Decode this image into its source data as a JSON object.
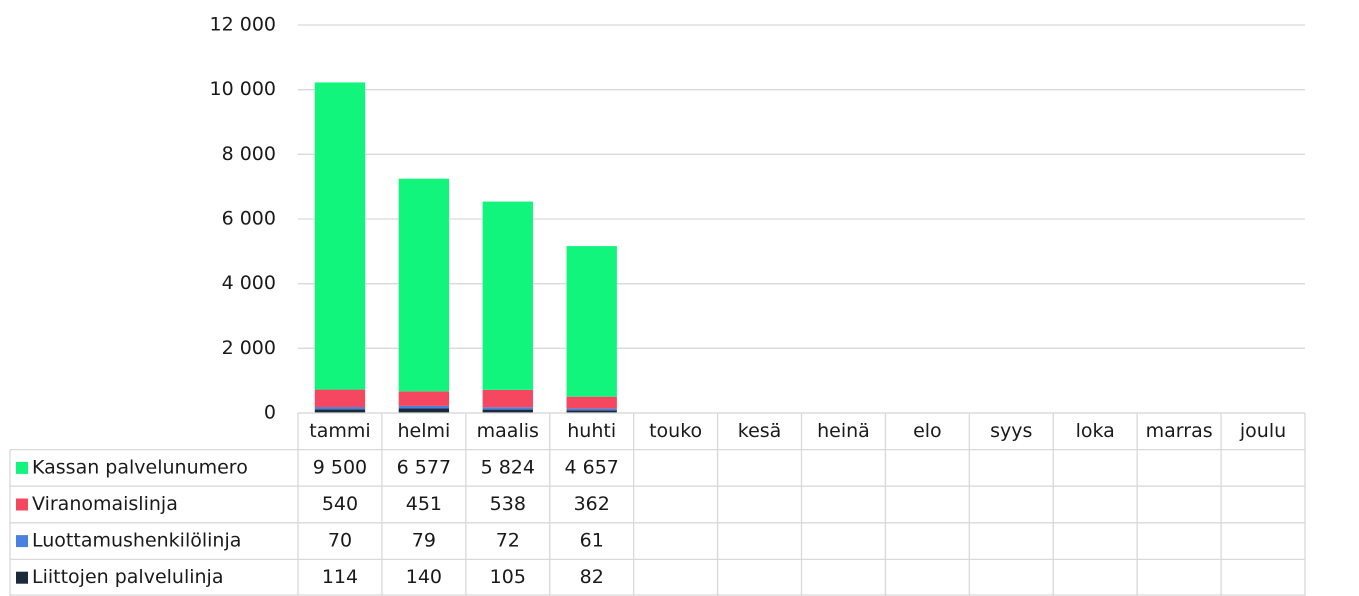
{
  "chart_data": {
    "type": "stacked_bar",
    "categories": [
      "tammi",
      "helmi",
      "maalis",
      "huhti",
      "touko",
      "kesä",
      "heinä",
      "elo",
      "syys",
      "loka",
      "marras",
      "joulu"
    ],
    "series": [
      {
        "name": "Kassan palvelunumero",
        "color": "#12f57d",
        "values": [
          9500,
          6577,
          5824,
          4657,
          null,
          null,
          null,
          null,
          null,
          null,
          null,
          null
        ],
        "value_labels": [
          "9 500",
          "6 577",
          "5 824",
          "4 657",
          null,
          null,
          null,
          null,
          null,
          null,
          null,
          null
        ]
      },
      {
        "name": "Viranomaislinja",
        "color": "#f5475f",
        "values": [
          540,
          451,
          538,
          362,
          null,
          null,
          null,
          null,
          null,
          null,
          null,
          null
        ]
      },
      {
        "name": "Luottamushenkilölinja",
        "color": "#4a80e0",
        "values": [
          70,
          79,
          72,
          61,
          null,
          null,
          null,
          null,
          null,
          null,
          null,
          null
        ]
      },
      {
        "name": "Liittojen palvelulinja",
        "color": "#1b2a38",
        "values": [
          114,
          140,
          105,
          82,
          null,
          null,
          null,
          null,
          null,
          null,
          null,
          null
        ]
      }
    ],
    "ylim": [
      0,
      12000
    ],
    "yticks": [
      0,
      {
        "value": 2000,
        "label": "2 000"
      },
      {
        "value": 4000,
        "label": "4 000"
      },
      {
        "value": 6000,
        "label": "6 000"
      },
      {
        "value": 8000,
        "label": "8 000"
      },
      {
        "value": 10000,
        "label": "10 000"
      },
      {
        "value": 12000,
        "label": "12 000"
      }
    ],
    "grid": true,
    "data_table": true
  }
}
